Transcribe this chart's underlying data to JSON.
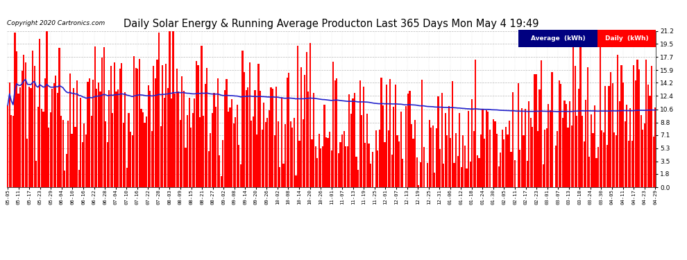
{
  "title": "Daily Solar Energy & Running Average Producton Last 365 Days Mon May 4 19:49",
  "copyright": "Copyright 2020 Cartronics.com",
  "yticks": [
    0.0,
    1.8,
    3.5,
    5.3,
    7.1,
    8.8,
    10.6,
    12.4,
    14.2,
    15.9,
    17.7,
    19.5,
    21.2
  ],
  "ylim": [
    0.0,
    21.2
  ],
  "bar_color": "#FF0000",
  "avg_line_color": "#2222CC",
  "background_color": "#FFFFFF",
  "grid_color": "#999999",
  "legend_avg_bg": "#000080",
  "legend_daily_bg": "#FF0000",
  "legend_avg_text": "Average  (kWh)",
  "legend_daily_text": "Daily  (kWh)",
  "title_fontsize": 10.5,
  "copyright_fontsize": 6.5,
  "xtick_fontsize": 5.2,
  "ytick_fontsize": 6.5,
  "xtick_labels": [
    "05-05",
    "05-11",
    "05-17",
    "05-23",
    "05-29",
    "06-04",
    "06-10",
    "06-16",
    "06-22",
    "06-28",
    "07-04",
    "07-10",
    "07-16",
    "07-22",
    "07-28",
    "08-03",
    "08-09",
    "08-15",
    "08-21",
    "08-27",
    "09-02",
    "09-08",
    "09-14",
    "09-20",
    "09-26",
    "10-02",
    "10-08",
    "10-14",
    "10-20",
    "10-26",
    "11-01",
    "11-07",
    "11-13",
    "11-19",
    "11-25",
    "12-01",
    "12-07",
    "12-13",
    "12-19",
    "12-25",
    "12-31",
    "01-06",
    "01-12",
    "01-18",
    "01-24",
    "01-30",
    "02-05",
    "02-11",
    "02-17",
    "02-23",
    "03-01",
    "03-07",
    "03-13",
    "03-18",
    "03-24",
    "03-30",
    "04-05",
    "04-11",
    "04-17",
    "04-23",
    "04-29"
  ]
}
